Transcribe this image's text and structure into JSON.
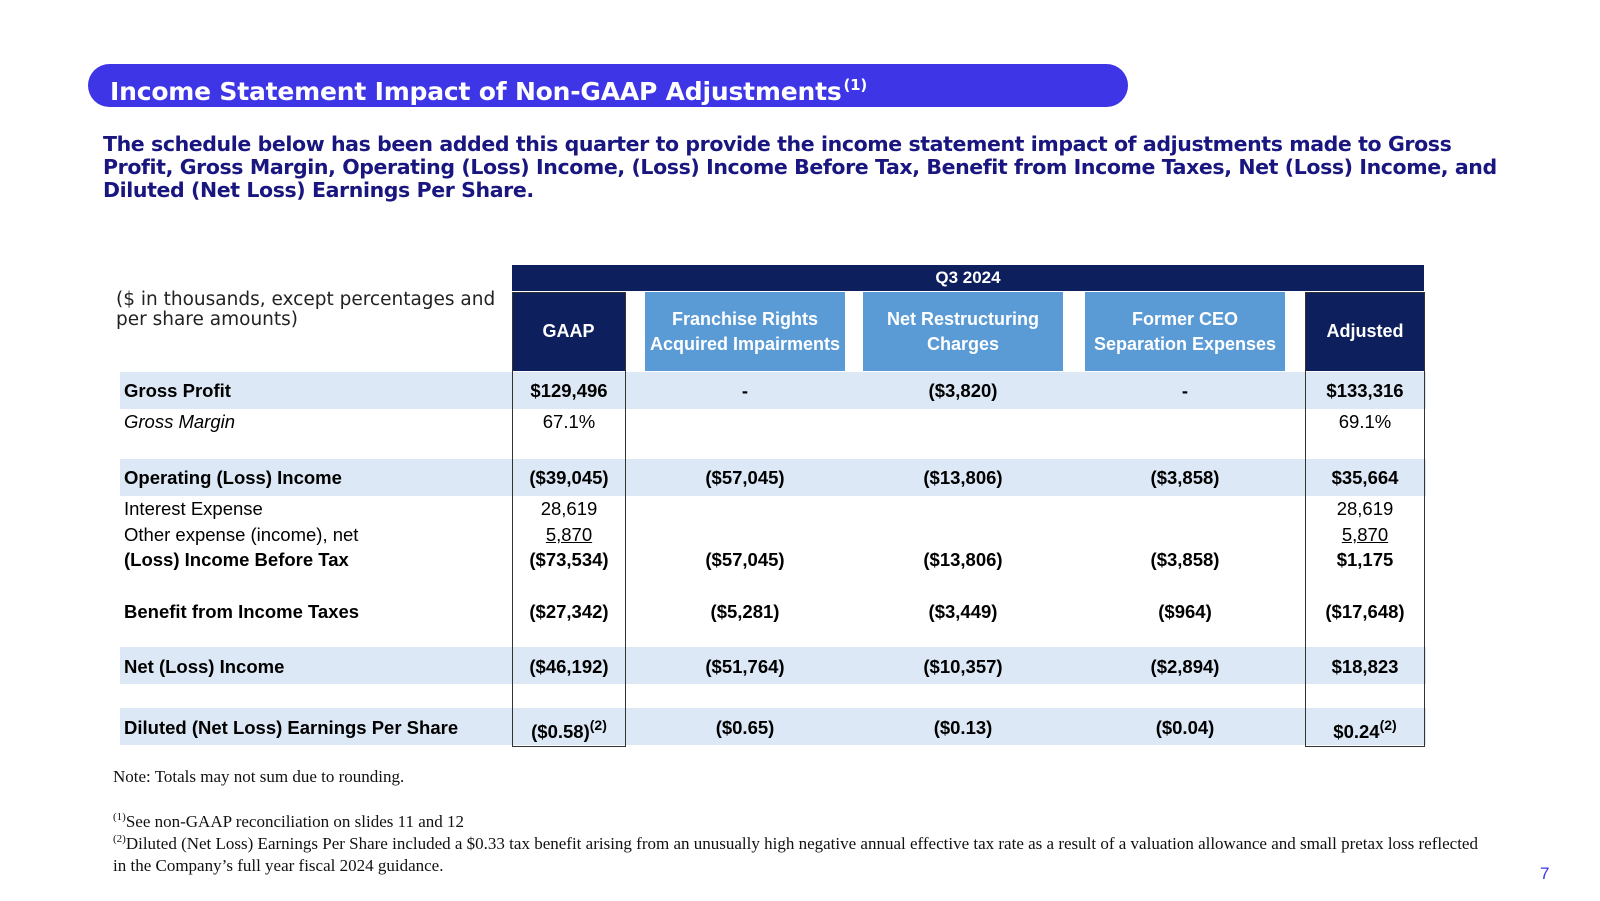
{
  "title": {
    "text": "Income Statement Impact of Non-GAAP Adjustments",
    "sup": "(1)"
  },
  "intro": "The schedule below has been added this quarter to provide the income statement impact of adjustments made to Gross Profit, Gross Margin, Operating (Loss) Income, (Loss) Income Before Tax, Benefit from Income Taxes, Net (Loss) Income, and Diluted (Net Loss) Earnings Per Share.",
  "units_label": "($ in thousands, except percentages and per share amounts)",
  "period_header": "Q3 2024",
  "columns": [
    "GAAP",
    "Franchise Rights Acquired Impairments",
    "Net Restructuring Charges",
    "Former CEO Separation Expenses",
    "Adjusted"
  ],
  "rows": [
    {
      "label": "Gross Profit",
      "values": [
        "$129,496",
        "-",
        "($3,820)",
        "-",
        "$133,316"
      ]
    },
    {
      "label": "Gross Margin",
      "values": [
        "67.1%",
        "",
        "",
        "",
        "69.1%"
      ]
    },
    {
      "label": "Operating (Loss) Income",
      "values": [
        "($39,045)",
        "($57,045)",
        "($13,806)",
        "($3,858)",
        "$35,664"
      ]
    },
    {
      "label": "Interest Expense",
      "values": [
        "28,619",
        "",
        "",
        "",
        "28,619"
      ]
    },
    {
      "label": "Other expense (income), net",
      "values": [
        "5,870",
        "",
        "",
        "",
        "5,870"
      ]
    },
    {
      "label": "(Loss) Income Before Tax",
      "values": [
        "($73,534)",
        "($57,045)",
        "($13,806)",
        "($3,858)",
        "$1,175"
      ]
    },
    {
      "label": "Benefit from Income Taxes",
      "values": [
        "($27,342)",
        "($5,281)",
        "($3,449)",
        "($964)",
        "($17,648)"
      ]
    },
    {
      "label": "Net (Loss) Income",
      "values": [
        "($46,192)",
        "($51,764)",
        "($10,357)",
        "($2,894)",
        "$18,823"
      ]
    },
    {
      "label": "Diluted (Net Loss) Earnings Per Share",
      "values": [
        "($0.58)",
        "($0.65)",
        "($0.13)",
        "($0.04)",
        "$0.24"
      ],
      "sups": [
        "(2)",
        "",
        "",
        "",
        "(2)"
      ]
    }
  ],
  "notes": {
    "rounding": "Note: Totals may not sum due to rounding.",
    "fn1_mark": "(1)",
    "fn1": "See non-GAAP reconciliation on slides 11 and 12",
    "fn2_mark": "(2)",
    "fn2": "Diluted (Net Loss) Earnings Per Share included a $0.33 tax benefit arising from an unusually high negative annual effective tax rate as a result of a valuation allowance and small pretax loss reflected in the Company’s full year fiscal 2024 guidance."
  },
  "page_number": "7"
}
